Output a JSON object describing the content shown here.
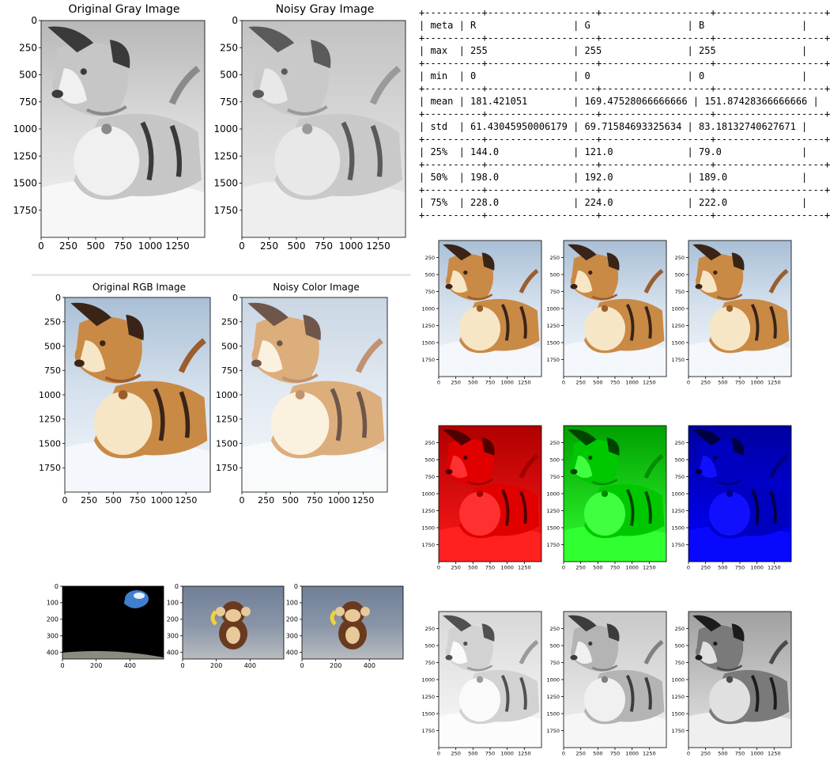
{
  "gray_panels": [
    {
      "title": "Original Gray Image",
      "variant": "gray",
      "xticks": [
        "0",
        "250",
        "500",
        "750",
        "1000",
        "1250"
      ],
      "yticks": [
        "0",
        "250",
        "500",
        "750",
        "1000",
        "1250",
        "1500",
        "1750"
      ]
    },
    {
      "title": "Noisy Gray Image",
      "variant": "gray-noisy",
      "xticks": [
        "0",
        "250",
        "500",
        "750",
        "1000",
        "1250"
      ],
      "yticks": [
        "0",
        "250",
        "500",
        "750",
        "1000",
        "1250",
        "1500",
        "1750"
      ]
    }
  ],
  "rgb_panels": [
    {
      "title": "Original RGB Image",
      "variant": "color",
      "xticks": [
        "0",
        "250",
        "500",
        "750",
        "1000",
        "1250"
      ],
      "yticks": [
        "0",
        "250",
        "500",
        "750",
        "1000",
        "1250",
        "1500",
        "1750"
      ]
    },
    {
      "title": "Noisy Color Image",
      "variant": "color-noisy",
      "xticks": [
        "0",
        "250",
        "500",
        "750",
        "1000",
        "1250"
      ],
      "yticks": [
        "0",
        "250",
        "500",
        "750",
        "1000",
        "1250",
        "1500",
        "1750"
      ]
    }
  ],
  "stats_table": {
    "lines": [
      "+----------+-------------------+-------------------+-------------------+",
      "| meta | R                 | G                 | B                 |",
      "+----------+-------------------+-------------------+-------------------+",
      "| max  | 255               | 255               | 255               |",
      "+----------+-------------------+-------------------+-------------------+",
      "| min  | 0                 | 0                 | 0                 |",
      "+----------+-------------------+-------------------+-------------------+",
      "| mean | 181.421051        | 169.47528066666666 | 151.87428366666666 |",
      "+----------+-------------------+-------------------+-------------------+",
      "| std  | 61.43045950006179 | 69.71584693325634 | 83.18132740627671 |",
      "+----------+-------------------+-------------------+-------------------+",
      "| 25%  | 144.0             | 121.0             | 79.0              |",
      "+----------+-------------------+-------------------+-------------------+",
      "| 50%  | 198.0             | 192.0             | 189.0             |",
      "+----------+-------------------+-------------------+-------------------+",
      "| 75%  | 228.0             | 224.0             | 222.0             |",
      "+----------+-------------------+-------------------+-------------------+"
    ]
  },
  "grid_rows": [
    {
      "row": "color-copies",
      "variants": [
        "color",
        "color",
        "color"
      ]
    },
    {
      "row": "single-channels",
      "variants": [
        "red",
        "green",
        "blue"
      ]
    },
    {
      "row": "channel-grayscale",
      "variants": [
        "gray-r",
        "gray-g",
        "gray-b"
      ]
    }
  ],
  "grid_xticks": [
    "0",
    "250",
    "500",
    "750",
    "1000",
    "1250"
  ],
  "grid_yticks": [
    "250",
    "500",
    "750",
    "1000",
    "1250",
    "1500",
    "1750"
  ],
  "small_panels": [
    {
      "variant": "earth",
      "xticks": [
        "0",
        "200",
        "400"
      ],
      "yticks": [
        "0",
        "100",
        "200",
        "300",
        "400"
      ]
    },
    {
      "variant": "monkey",
      "xticks": [
        "0",
        "200",
        "400"
      ],
      "yticks": [
        "0",
        "100",
        "200",
        "300",
        "400"
      ]
    },
    {
      "variant": "monkey",
      "xticks": [
        "0",
        "200",
        "400"
      ],
      "yticks": [
        "0",
        "100",
        "200",
        "300",
        "400"
      ]
    }
  ],
  "chart_data": [
    {
      "type": "image",
      "title": "Original Gray Image",
      "x_range": [
        0,
        1500
      ],
      "y_range": [
        2000,
        0
      ]
    },
    {
      "type": "image",
      "title": "Noisy Gray Image",
      "x_range": [
        0,
        1500
      ],
      "y_range": [
        2000,
        0
      ]
    },
    {
      "type": "image",
      "title": "Original RGB Image",
      "x_range": [
        0,
        1500
      ],
      "y_range": [
        2000,
        0
      ]
    },
    {
      "type": "image",
      "title": "Noisy Color Image",
      "x_range": [
        0,
        1500
      ],
      "y_range": [
        2000,
        0
      ]
    },
    {
      "type": "table",
      "columns": [
        "meta",
        "R",
        "G",
        "B"
      ],
      "rows": [
        [
          "max",
          "255",
          "255",
          "255"
        ],
        [
          "min",
          "0",
          "0",
          "0"
        ],
        [
          "mean",
          "181.421051",
          "169.47528066666666",
          "151.87428366666666"
        ],
        [
          "std",
          "61.43045950006179",
          "69.71584693325634",
          "83.18132740627671"
        ],
        [
          "25%",
          "144.0",
          "121.0",
          "79.0"
        ],
        [
          "50%",
          "198.0",
          "192.0",
          "189.0"
        ],
        [
          "75%",
          "228.0",
          "224.0",
          "222.0"
        ]
      ]
    }
  ],
  "colors": {
    "red_channel": "#e00000",
    "green_channel": "#00c000",
    "blue_channel": "#0000e0",
    "earth_blue": "#3f7fd0"
  }
}
